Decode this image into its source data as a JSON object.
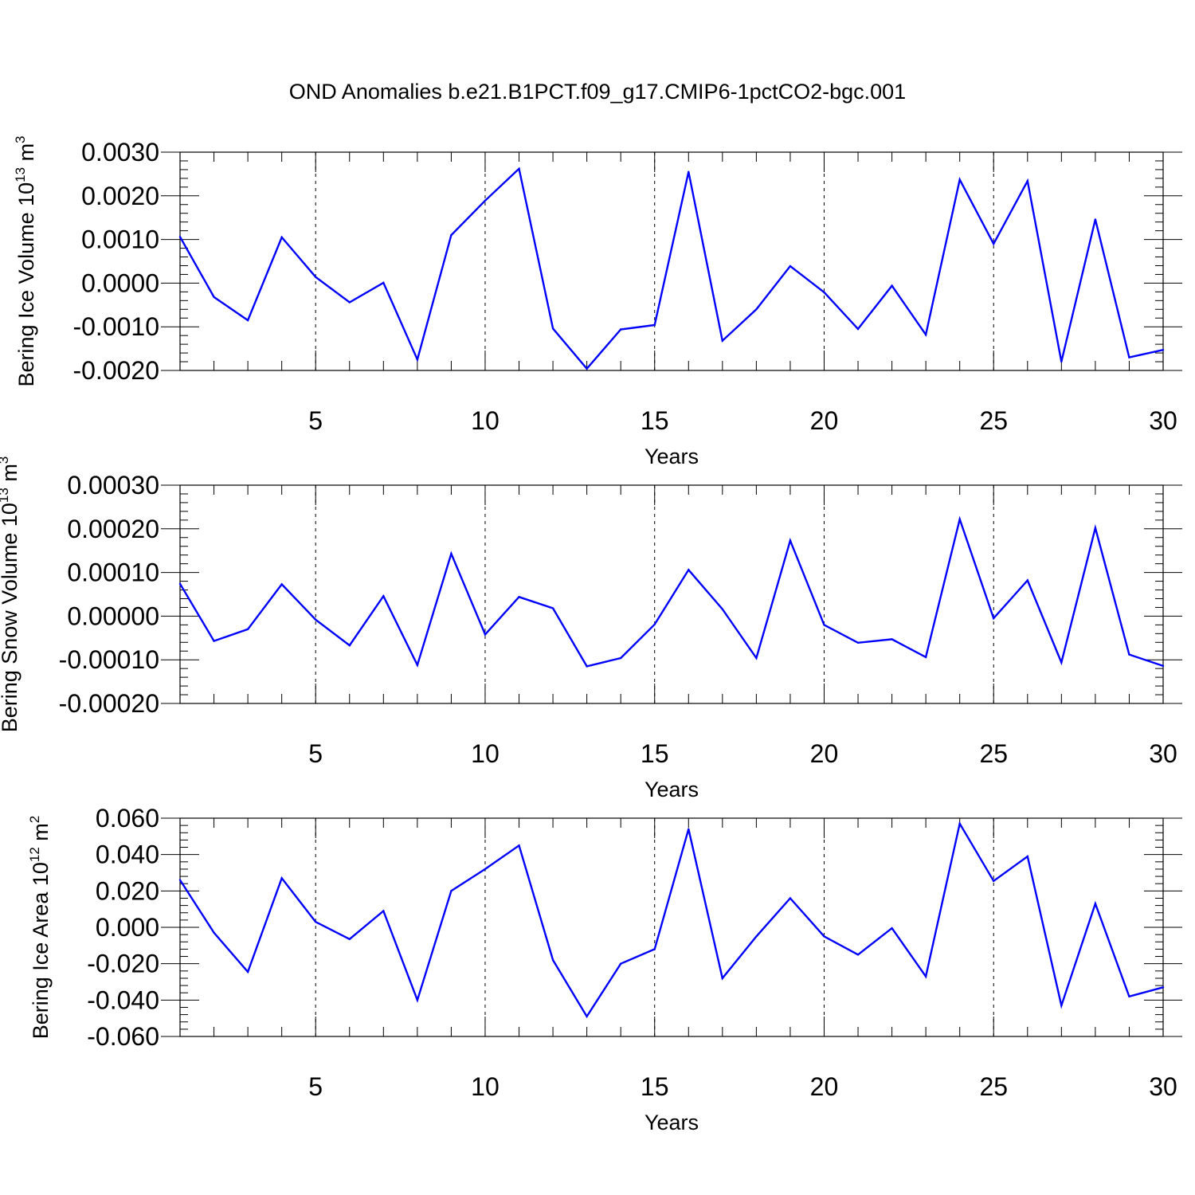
{
  "title": "OND Anomalies b.e21.B1PCT.f09_g17.CMIP6-1pctCO2-bgc.001",
  "line_color": "#0000ff",
  "chart_data": [
    {
      "type": "line",
      "ylabel": "Bering Ice Volume 10",
      "ylabel_sup": "13",
      "ylabel_unit": "m",
      "ylabel_unit_sup": "3",
      "xlabel": "Years",
      "xlim": [
        1,
        30
      ],
      "ylim": [
        -0.002,
        0.003
      ],
      "y_ticks": [
        -0.002,
        -0.001,
        0.0,
        0.001,
        0.002,
        0.003
      ],
      "y_tick_labels": [
        "-0.0020",
        "-0.0010",
        "0.0000",
        "0.0010",
        "0.0020",
        "0.0030"
      ],
      "x_ticks": [
        5,
        10,
        15,
        20,
        25,
        30
      ],
      "x_tick_labels": [
        "5",
        "10",
        "15",
        "20",
        "25",
        "30"
      ],
      "grid": "vertical dashed at major x ticks",
      "x": [
        1,
        2,
        3,
        4,
        5,
        6,
        7,
        8,
        9,
        10,
        11,
        12,
        13,
        14,
        15,
        16,
        17,
        18,
        19,
        20,
        21,
        22,
        23,
        24,
        25,
        26,
        27,
        28,
        29,
        30
      ],
      "values": [
        0.00106,
        -0.00032,
        -0.00085,
        0.00105,
        0.00014,
        -0.00044,
        1e-05,
        -0.00175,
        0.0011,
        0.00189,
        0.00262,
        -0.00104,
        -0.00196,
        -0.00106,
        -0.00096,
        0.00255,
        -0.00132,
        -0.0006,
        0.00039,
        -0.00021,
        -0.00105,
        -6e-05,
        -0.00118,
        0.00237,
        0.0009,
        0.00234,
        -0.0018,
        0.00146,
        -0.0017,
        -0.00153
      ]
    },
    {
      "type": "line",
      "ylabel": "Bering Snow Volume 10",
      "ylabel_sup": "13",
      "ylabel_unit": "m",
      "ylabel_unit_sup": "3",
      "xlabel": "Years",
      "xlim": [
        1,
        30
      ],
      "ylim": [
        -0.0002,
        0.0003
      ],
      "y_ticks": [
        -0.0002,
        -0.0001,
        0.0,
        0.0001,
        0.0002,
        0.0003
      ],
      "y_tick_labels": [
        "-0.00020",
        "-0.00010",
        "0.00000",
        "0.00010",
        "0.00020",
        "0.00030"
      ],
      "x_ticks": [
        5,
        10,
        15,
        20,
        25,
        30
      ],
      "x_tick_labels": [
        "5",
        "10",
        "15",
        "20",
        "25",
        "30"
      ],
      "grid": "vertical dashed at major x ticks",
      "x": [
        1,
        2,
        3,
        4,
        5,
        6,
        7,
        8,
        9,
        10,
        11,
        12,
        13,
        14,
        15,
        16,
        17,
        18,
        19,
        20,
        21,
        22,
        23,
        24,
        25,
        26,
        27,
        28,
        29,
        30
      ],
      "values": [
        7.4e-05,
        -5.7e-05,
        -3e-05,
        7.3e-05,
        -8e-06,
        -6.7e-05,
        4.6e-05,
        -0.000112,
        0.000143,
        -4.2e-05,
        4.4e-05,
        1.8e-05,
        -0.000115,
        -9.6e-05,
        -1.9e-05,
        0.000106,
        1.6e-05,
        -9.6e-05,
        0.000173,
        -2e-05,
        -6.1e-05,
        -5.3e-05,
        -9.4e-05,
        0.000222,
        -5e-06,
        8.2e-05,
        -0.000106,
        0.000202,
        -8.8e-05,
        -0.000114
      ]
    },
    {
      "type": "line",
      "ylabel": "Bering Ice Area 10",
      "ylabel_sup": "12",
      "ylabel_unit": "m",
      "ylabel_unit_sup": "2",
      "xlabel": "Years",
      "xlim": [
        1,
        30
      ],
      "ylim": [
        -0.06,
        0.06
      ],
      "y_ticks": [
        -0.06,
        -0.04,
        -0.02,
        0.0,
        0.02,
        0.04,
        0.06
      ],
      "y_tick_labels": [
        "-0.060",
        "-0.040",
        "-0.020",
        "0.000",
        "0.020",
        "0.040",
        "0.060"
      ],
      "x_ticks": [
        5,
        10,
        15,
        20,
        25,
        30
      ],
      "x_tick_labels": [
        "5",
        "10",
        "15",
        "20",
        "25",
        "30"
      ],
      "grid": "vertical dashed at major x ticks",
      "x": [
        1,
        2,
        3,
        4,
        5,
        6,
        7,
        8,
        9,
        10,
        11,
        12,
        13,
        14,
        15,
        16,
        17,
        18,
        19,
        20,
        21,
        22,
        23,
        24,
        25,
        26,
        27,
        28,
        29,
        30
      ],
      "values": [
        0.026,
        -0.003,
        -0.0245,
        0.027,
        0.003,
        -0.0065,
        0.009,
        -0.04,
        0.02,
        0.032,
        0.045,
        -0.018,
        -0.049,
        -0.02,
        -0.012,
        0.054,
        -0.028,
        -0.005,
        0.016,
        -0.005,
        -0.015,
        -0.0005,
        -0.027,
        0.057,
        0.0255,
        0.039,
        -0.043,
        0.013,
        -0.038,
        -0.033
      ]
    }
  ]
}
